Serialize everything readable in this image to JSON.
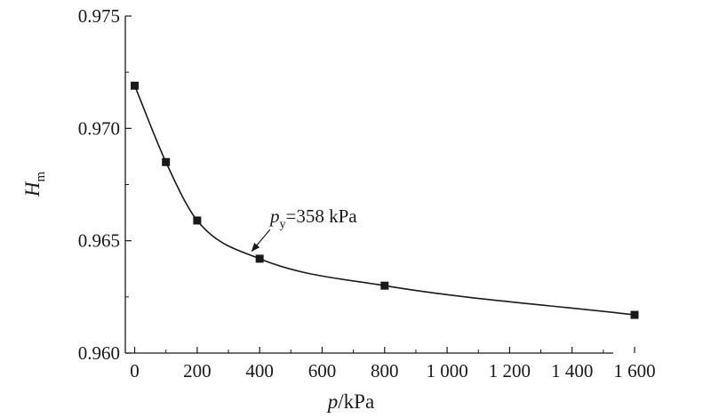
{
  "chart_data": {
    "type": "line",
    "x": [
      0,
      100,
      200,
      400,
      800,
      1600
    ],
    "series": [
      {
        "values": [
          0.9719,
          0.9685,
          0.9659,
          0.9642,
          0.963,
          0.9617
        ]
      }
    ],
    "xlabel": {
      "italic": "p",
      "rest": "/kPa"
    },
    "ylabel": {
      "italic": "H",
      "sub": "m"
    },
    "xlim": [
      -30,
      1600
    ],
    "ylim": [
      0.96,
      0.975
    ],
    "xticks": [
      {
        "value": 0,
        "label": "0"
      },
      {
        "value": 200,
        "label": "200"
      },
      {
        "value": 400,
        "label": "400"
      },
      {
        "value": 600,
        "label": "600"
      },
      {
        "value": 800,
        "label": "800"
      },
      {
        "value": 1000,
        "label": "1 000"
      },
      {
        "value": 1200,
        "label": "1 200"
      },
      {
        "value": 1400,
        "label": "1 400"
      },
      {
        "value": 1600,
        "label": "1 600"
      }
    ],
    "yticks": [
      {
        "value": 0.96,
        "label": "0.960"
      },
      {
        "value": 0.965,
        "label": "0.965"
      },
      {
        "value": 0.97,
        "label": "0.970"
      },
      {
        "value": 0.975,
        "label": "0.975"
      }
    ],
    "annotations": [
      {
        "italic": "p",
        "sub": "y",
        "rest": "=358 kPa",
        "arrow_to": {
          "x": 375,
          "y": 0.9643
        }
      }
    ],
    "grid": false,
    "marker": "square",
    "line_color": "#1a1a1a"
  }
}
